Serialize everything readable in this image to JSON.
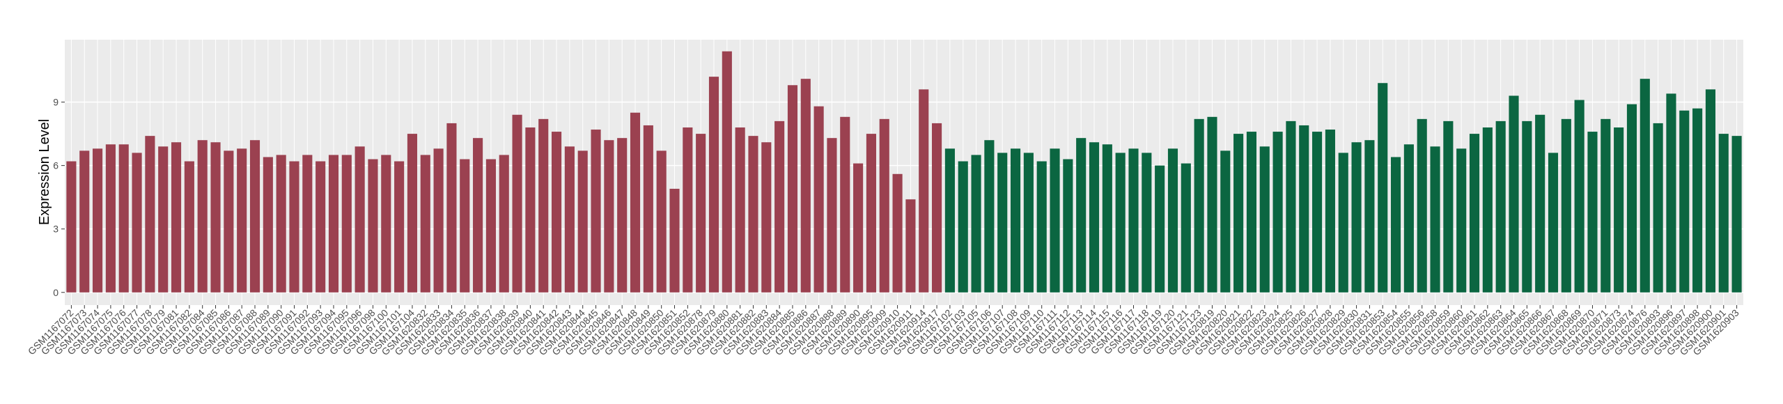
{
  "chart_data": {
    "type": "bar",
    "y_label": "Expression Level",
    "categories": [
      "GSM1167072",
      "GSM1167073",
      "GSM1167074",
      "GSM1167075",
      "GSM1167076",
      "GSM1167077",
      "GSM1167078",
      "GSM1167079",
      "GSM1167081",
      "GSM1167082",
      "GSM1167084",
      "GSM1167085",
      "GSM1167086",
      "GSM1167087",
      "GSM1167088",
      "GSM1167089",
      "GSM1167090",
      "GSM1167091",
      "GSM1167092",
      "GSM1167093",
      "GSM1167094",
      "GSM1167095",
      "GSM1167096",
      "GSM1167098",
      "GSM1167100",
      "GSM1167101",
      "GSM1167104",
      "GSM1620832",
      "GSM1620833",
      "GSM1620834",
      "GSM1620835",
      "GSM1620836",
      "GSM1620837",
      "GSM1620838",
      "GSM1620839",
      "GSM1620840",
      "GSM1620841",
      "GSM1620842",
      "GSM1620843",
      "GSM1620844",
      "GSM1620845",
      "GSM1620846",
      "GSM1620847",
      "GSM1620848",
      "GSM1620849",
      "GSM1620850",
      "GSM1620851",
      "GSM1620852",
      "GSM1620878",
      "GSM1620879",
      "GSM1620880",
      "GSM1620881",
      "GSM1620882",
      "GSM1620883",
      "GSM1620884",
      "GSM1620885",
      "GSM1620886",
      "GSM1620887",
      "GSM1620888",
      "GSM1620889",
      "GSM1620890",
      "GSM1620895",
      "GSM1620909",
      "GSM1620910",
      "GSM1620911",
      "GSM1620914",
      "GSM1620917",
      "GSM1167102",
      "GSM1167103",
      "GSM1167105",
      "GSM1167106",
      "GSM1167107",
      "GSM1167108",
      "GSM1167109",
      "GSM1167110",
      "GSM1167111",
      "GSM1167112",
      "GSM1167113",
      "GSM1167114",
      "GSM1167115",
      "GSM1167116",
      "GSM1167117",
      "GSM1167118",
      "GSM1167119",
      "GSM1167120",
      "GSM1167121",
      "GSM1167123",
      "GSM1620819",
      "GSM1620820",
      "GSM1620821",
      "GSM1620822",
      "GSM1620823",
      "GSM1620824",
      "GSM1620825",
      "GSM1620826",
      "GSM1620827",
      "GSM1620828",
      "GSM1620829",
      "GSM1620830",
      "GSM1620831",
      "GSM1620853",
      "GSM1620854",
      "GSM1620855",
      "GSM1620856",
      "GSM1620858",
      "GSM1620859",
      "GSM1620860",
      "GSM1620861",
      "GSM1620862",
      "GSM1620863",
      "GSM1620864",
      "GSM1620865",
      "GSM1620866",
      "GSM1620867",
      "GSM1620868",
      "GSM1620869",
      "GSM1620870",
      "GSM1620871",
      "GSM1620873",
      "GSM1620874",
      "GSM1620876",
      "GSM1620893",
      "GSM1620896",
      "GSM1620897",
      "GSM1620898",
      "GSM1620900",
      "GSM1620901",
      "GSM1620903"
    ],
    "series": [
      {
        "color": "#9b4150",
        "values": [
          6.2,
          6.7,
          6.8,
          7.0,
          7.0,
          6.6,
          7.4,
          6.9,
          7.1,
          6.2,
          7.2,
          7.1,
          6.7,
          6.8,
          7.2,
          6.4,
          6.5,
          6.2,
          6.5,
          6.2,
          6.5,
          6.5,
          6.9,
          6.3,
          6.5,
          6.2,
          7.5,
          6.5,
          6.8,
          8.0,
          6.3,
          7.3,
          6.3,
          6.5,
          8.4,
          7.8,
          8.2,
          7.6,
          6.9,
          6.7,
          7.7,
          7.2,
          7.3,
          8.5,
          7.9,
          6.7,
          4.9,
          7.8,
          7.5,
          10.2,
          11.4,
          7.8,
          7.4,
          7.1,
          8.1,
          9.8,
          10.1,
          8.8,
          7.3,
          8.3,
          6.1,
          7.5,
          8.2,
          5.6,
          4.4,
          9.6,
          8.0,
          null,
          null,
          null,
          null,
          null,
          null,
          null,
          null,
          null,
          null,
          null,
          null,
          null,
          null,
          null,
          null,
          null,
          null,
          null,
          null,
          null,
          null,
          null,
          null,
          null,
          null,
          null,
          null,
          null,
          null,
          null,
          null,
          null,
          null,
          null,
          null,
          null,
          null,
          null,
          null,
          null,
          null,
          null,
          null,
          null,
          null,
          null,
          null,
          null,
          null,
          null,
          null,
          null,
          null,
          null,
          null,
          null,
          null,
          null,
          null,
          null
        ]
      },
      {
        "color": "#0b6641",
        "values": [
          null,
          null,
          null,
          null,
          null,
          null,
          null,
          null,
          null,
          null,
          null,
          null,
          null,
          null,
          null,
          null,
          null,
          null,
          null,
          null,
          null,
          null,
          null,
          null,
          null,
          null,
          null,
          null,
          null,
          null,
          null,
          null,
          null,
          null,
          null,
          null,
          null,
          null,
          null,
          null,
          null,
          null,
          null,
          null,
          null,
          null,
          null,
          null,
          null,
          null,
          null,
          null,
          null,
          null,
          null,
          null,
          null,
          null,
          null,
          null,
          null,
          null,
          null,
          null,
          null,
          null,
          null,
          6.8,
          6.2,
          6.5,
          7.2,
          6.6,
          6.8,
          6.6,
          6.2,
          6.8,
          6.3,
          7.3,
          7.1,
          7.0,
          6.6,
          6.8,
          6.6,
          6.0,
          6.8,
          6.1,
          8.2,
          8.3,
          6.7,
          7.5,
          7.6,
          6.9,
          7.6,
          8.1,
          7.9,
          7.6,
          7.7,
          6.6,
          7.1,
          7.2,
          9.9,
          6.4,
          7.0,
          8.2,
          6.9,
          8.1,
          6.8,
          7.5,
          7.8,
          8.1,
          9.3,
          8.1,
          8.4,
          6.6,
          8.2,
          9.1,
          7.6,
          8.2,
          7.8,
          8.9,
          10.1,
          8.0,
          9.4,
          8.6,
          8.7,
          9.6,
          7.5,
          7.4
        ]
      }
    ],
    "ylim": [
      -0.6,
      11.95
    ],
    "yticks": [
      0,
      3,
      6,
      9
    ],
    "grid": true
  }
}
